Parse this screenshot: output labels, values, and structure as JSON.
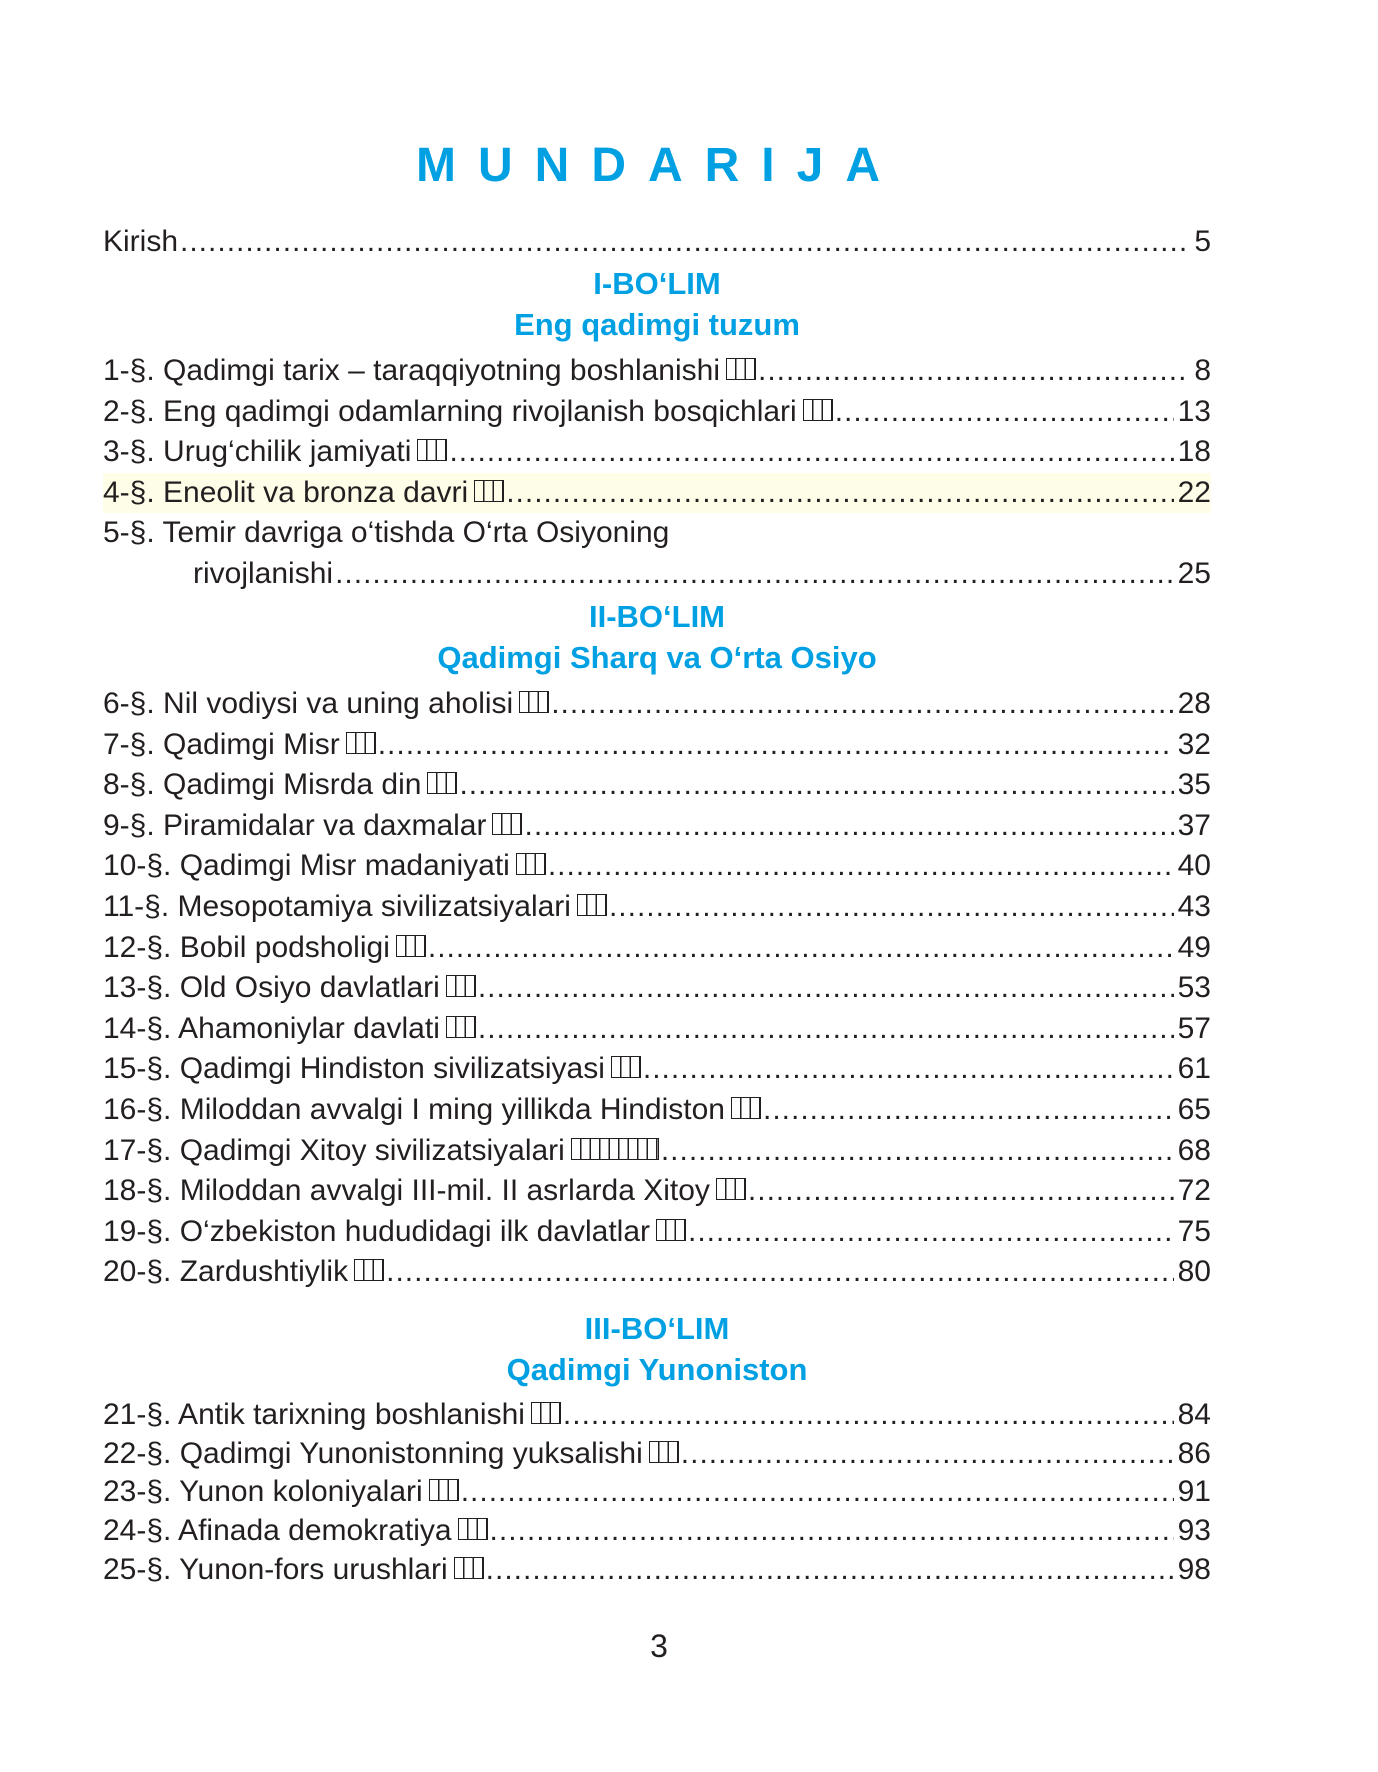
{
  "title": "MUNDARIJA",
  "intro": {
    "title": "Kirish",
    "page": "5"
  },
  "sections": [
    {
      "part": "I-BO‘LIM",
      "name": "Eng qadimgi tuzum",
      "entries": [
        {
          "title": "1-§. Qadimgi tarix – taraqqiyotning boshlanishi",
          "page": "8"
        },
        {
          "title": "2-§. Eng qadimgi odamlarning rivojlanish bosqichlari",
          "page": "13"
        },
        {
          "title": "3-§. Urug‘chilik jamiyati",
          "page": "18"
        },
        {
          "title": "4-§. Eneolit va bronza davri",
          "page": "22"
        },
        {
          "title": "5-§. Temir davriga o‘tishda O‘rta Osiyoning",
          "title2": "rivojlanishi",
          "page": "25"
        }
      ]
    },
    {
      "part": "II-BO‘LIM",
      "name": "Qadimgi Sharq va O‘rta Osiyo",
      "entries": [
        {
          "title": "6-§. Nil vodiysi va uning aholisi",
          "page": "28"
        },
        {
          "title": "7-§. Qadimgi Misr",
          "page": "32"
        },
        {
          "title": "8-§. Qadimgi Misrda din",
          "page": "35"
        },
        {
          "title": "9-§. Piramidalar va daxmalar",
          "page": "37"
        },
        {
          "title": "10-§. Qadimgi Misr madaniyati",
          "page": "40"
        },
        {
          "title": "11-§. Mesopotamiya sivilizatsiyalari",
          "page": "43"
        },
        {
          "title": "12-§. Bobil podsholigi",
          "page": "49"
        },
        {
          "title": "13-§. Old Osiyo davlatlari",
          "page": "53"
        },
        {
          "title": "14-§. Ahamoniylar davlati",
          "page": "57"
        },
        {
          "title": "15-§. Qadimgi Hindiston sivilizatsiyasi",
          "page": "61"
        },
        {
          "title": "16-§. Miloddan avvalgi I ming yillikda Hindiston",
          "page": "65"
        },
        {
          "title": "17-§. Qadimgi Xitoy sivilizatsiyalari",
          "page": "68"
        },
        {
          "title": "18-§. Miloddan avvalgi III-mil. II asrlarda Xitoy",
          "page": "72"
        },
        {
          "title": "19-§. O‘zbekiston hududidagi ilk davlatlar",
          "page": "75"
        },
        {
          "title": "20-§. Zardushtiylik",
          "page": "80"
        }
      ]
    },
    {
      "part": "III-BO‘LIM",
      "name": "Qadimgi Yunoniston",
      "entries": [
        {
          "title": "21-§. Antik tarixning boshlanishi",
          "page": "84"
        },
        {
          "title": "22-§. Qadimgi Yunonistonning yuksalishi",
          "page": "86"
        },
        {
          "title": "23-§. Yunon koloniyalari",
          "page": "91"
        },
        {
          "title": "24-§. Afinada demokratiya",
          "page": "93"
        },
        {
          "title": "25-§. Yunon-fors urushlari",
          "page": "98"
        }
      ]
    }
  ],
  "page_number": "3",
  "colors": {
    "accent": "#00a0e3",
    "text": "#231f20",
    "highlight": "#fdfde8"
  }
}
